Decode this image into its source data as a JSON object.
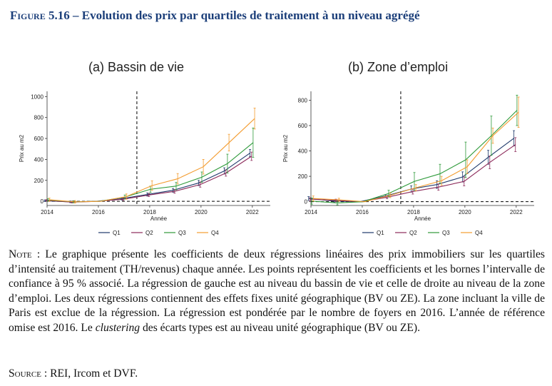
{
  "figure_title_prefix": "Figure 5.16",
  "figure_title_text": " – Evolution des prix par quartiles de traitement à un niveau agrégé",
  "colors": {
    "title": "#1c3f7a",
    "Q1": "#1f3a6b",
    "Q2": "#8c2a5a",
    "Q3": "#2e9a3a",
    "Q4": "#f39c30"
  },
  "chart_data": [
    {
      "type": "line",
      "panel_title": "(a) Bassin de vie",
      "ylabel": "Prix au m2",
      "xlabel": "Année",
      "ylim": [
        -40,
        1050
      ],
      "xlim": [
        2014,
        2022.7
      ],
      "yticks": [
        0,
        200,
        400,
        600,
        800,
        1000
      ],
      "ytick_labels": [
        "0",
        "200",
        "400",
        "600",
        "800",
        "1000"
      ],
      "xticks": [
        2014,
        2016,
        2018,
        2020,
        2022
      ],
      "xtick_labels": [
        "2014",
        "2016",
        "2018",
        "2020",
        "2022"
      ],
      "reference_vline": 2017.5,
      "hline": 0,
      "legend_position": "bottom",
      "x": [
        2014,
        2015,
        2016,
        2017,
        2018,
        2019,
        2020,
        2021,
        2022
      ],
      "series": [
        {
          "name": "Q1",
          "values": [
            5,
            -5,
            0,
            25,
            65,
            105,
            175,
            290,
            460
          ],
          "ci": [
            8,
            8,
            0,
            12,
            15,
            18,
            25,
            30,
            35
          ]
        },
        {
          "name": "Q2",
          "values": [
            8,
            -8,
            0,
            20,
            60,
            95,
            160,
            270,
            430
          ],
          "ci": [
            8,
            8,
            0,
            12,
            15,
            18,
            25,
            30,
            40
          ]
        },
        {
          "name": "Q3",
          "values": [
            12,
            -5,
            0,
            40,
            115,
            145,
            230,
            360,
            560
          ],
          "ci": [
            12,
            10,
            0,
            20,
            30,
            35,
            50,
            90,
            140
          ]
        },
        {
          "name": "Q4",
          "values": [
            15,
            -5,
            0,
            45,
            150,
            215,
            330,
            560,
            790
          ],
          "ci": [
            15,
            12,
            0,
            25,
            45,
            50,
            70,
            80,
            100
          ]
        }
      ]
    },
    {
      "type": "line",
      "panel_title": "(b) Zone d’emploi",
      "ylabel": "Prix au m2",
      "xlabel": "Année",
      "ylim": [
        -30,
        870
      ],
      "xlim": [
        2014,
        2022.7
      ],
      "yticks": [
        0,
        200,
        400,
        600,
        800
      ],
      "ytick_labels": [
        "0",
        "200",
        "400",
        "600",
        "800"
      ],
      "xticks": [
        2014,
        2016,
        2018,
        2020,
        2022
      ],
      "xtick_labels": [
        "2014",
        "2016",
        "2018",
        "2020",
        "2022"
      ],
      "reference_vline": 2017.5,
      "hline": 0,
      "legend_position": "bottom",
      "x": [
        2014,
        2015,
        2016,
        2017,
        2018,
        2019,
        2020,
        2021,
        2022
      ],
      "series": [
        {
          "name": "Q1",
          "values": [
            25,
            5,
            0,
            45,
            100,
            135,
            195,
            350,
            500
          ],
          "ci": [
            15,
            10,
            0,
            12,
            25,
            30,
            40,
            55,
            60
          ]
        },
        {
          "name": "Q2",
          "values": [
            20,
            10,
            0,
            35,
            80,
            115,
            160,
            310,
            450
          ],
          "ci": [
            12,
            10,
            0,
            12,
            20,
            25,
            35,
            50,
            55
          ]
        },
        {
          "name": "Q3",
          "values": [
            5,
            -10,
            0,
            65,
            160,
            220,
            330,
            520,
            720
          ],
          "ci": [
            25,
            15,
            0,
            25,
            70,
            75,
            140,
            155,
            120
          ]
        },
        {
          "name": "Q4",
          "values": [
            25,
            15,
            0,
            50,
            110,
            165,
            275,
            520,
            705
          ],
          "ci": [
            20,
            12,
            0,
            18,
            25,
            35,
            55,
            60,
            120
          ]
        }
      ]
    }
  ],
  "note_label": "Note",
  "note_text": " : Le graphique présente les coefficients de deux régressions linéaires des prix immobiliers sur les quartiles d’intensité au traitement (TH/revenus) chaque année. Les points représentent les coefficients et les bornes l’intervalle de confiance à 95 % associé. La régression de gauche est au niveau du bassin de vie et celle de droite au niveau de la zone d’emploi. Les deux régressions contiennent des effets fixes unité géographique (BV ou ZE). La zone incluant la ville de Paris est exclue de la régression. La régression est pondérée par le nombre de foyers en 2016. L’année de référence omise est 2016. Le ",
  "note_italic": "clustering",
  "note_text_end": " des écarts types est au niveau unité géographique (BV ou ZE).",
  "source_label": "Source",
  "source_text": " : REI, Ircom et DVF."
}
